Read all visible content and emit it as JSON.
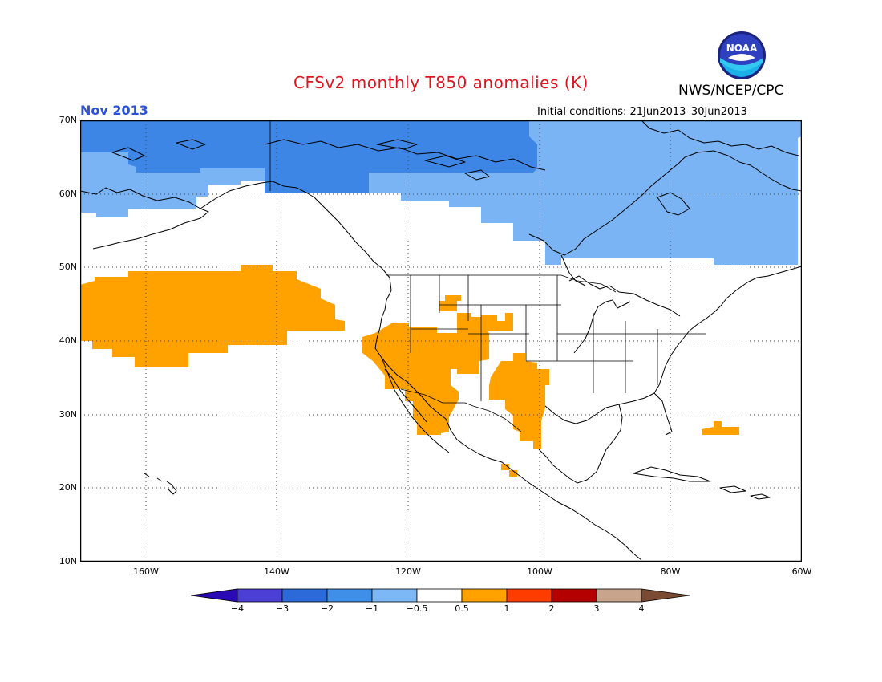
{
  "title": "CFSv2 monthly T850 anomalies (K)",
  "organization": "NWS/NCEP/CPC",
  "logo_text": "NOAA",
  "period": "Nov 2013",
  "initial_conditions": "Initial conditions: 21Jun2013–30Jun2013",
  "map": {
    "lon_range": [
      -171,
      -60
    ],
    "lat_range": [
      10,
      70
    ],
    "lat_labels": [
      "70N",
      "60N",
      "50N",
      "40N",
      "30N",
      "20N",
      "10N"
    ],
    "lon_labels": [
      "160W",
      "140W",
      "120W",
      "100W",
      "80W",
      "60W"
    ]
  },
  "colorbar": {
    "labels": [
      "−4",
      "−3",
      "−2",
      "−1",
      "−0.5",
      "0.5",
      "1",
      "2",
      "3",
      "4"
    ],
    "colors": [
      "#2a0ab4",
      "#4b3fd6",
      "#2b6ad8",
      "#3f8ee8",
      "#7cb7f6",
      "#ffffff",
      "#ffa200",
      "#ff3c00",
      "#b40000",
      "#c8a48c",
      "#7a4a32"
    ]
  },
  "anomaly_colors": {
    "minus_2": "#3d86e6",
    "minus_1": "#7ab4f5",
    "plus_1": "#ffa200"
  }
}
